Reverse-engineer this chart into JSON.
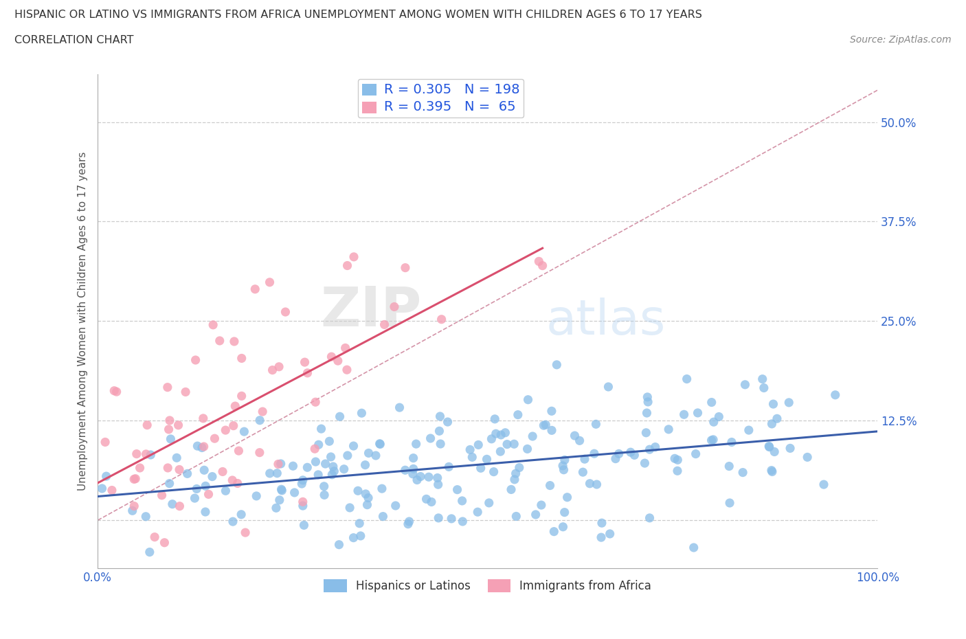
{
  "title": "HISPANIC OR LATINO VS IMMIGRANTS FROM AFRICA UNEMPLOYMENT AMONG WOMEN WITH CHILDREN AGES 6 TO 17 YEARS",
  "subtitle": "CORRELATION CHART",
  "source": "Source: ZipAtlas.com",
  "ylabel": "Unemployment Among Women with Children Ages 6 to 17 years",
  "xlim": [
    0,
    1.0
  ],
  "ylim": [
    -0.06,
    0.56
  ],
  "xticks": [
    0.0,
    0.25,
    0.5,
    0.75,
    1.0
  ],
  "xticklabels": [
    "0.0%",
    "",
    "",
    "",
    "100.0%"
  ],
  "yticks": [
    0.0,
    0.125,
    0.25,
    0.375,
    0.5
  ],
  "yticklabels": [
    "",
    "12.5%",
    "25.0%",
    "37.5%",
    "50.0%"
  ],
  "blue_color": "#89bde8",
  "pink_color": "#f5a0b5",
  "trend_blue": "#3a5eaa",
  "trend_pink": "#d94f6e",
  "ref_line_color": "#d494a8",
  "R_blue": 0.305,
  "N_blue": 198,
  "R_pink": 0.395,
  "N_pink": 65,
  "legend_text_color": "#2255dd",
  "watermark_zip": "ZIP",
  "watermark_atlas": "atlas",
  "background_color": "#ffffff",
  "grid_color": "#cccccc",
  "title_color": "#333333",
  "tick_label_color": "#3366cc",
  "seed_blue": 7,
  "seed_pink": 3
}
